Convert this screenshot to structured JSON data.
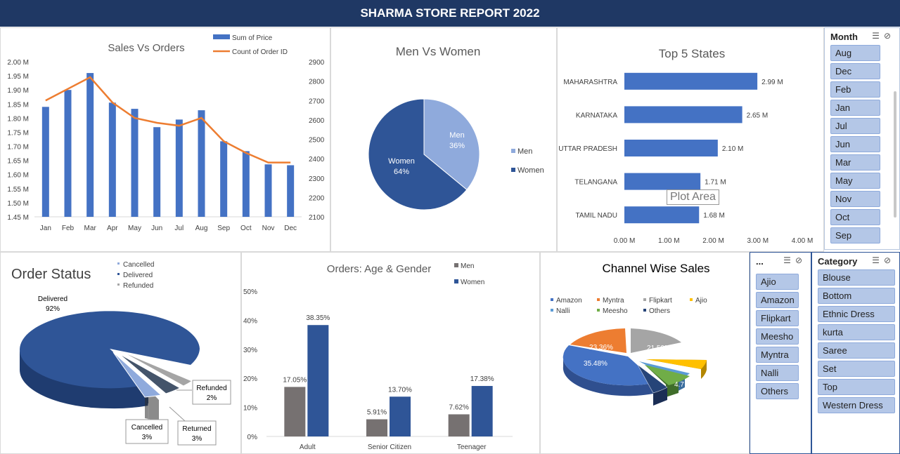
{
  "header": {
    "title": "SHARMA STORE REPORT 2022"
  },
  "tooltip": {
    "text": "Plot Area"
  },
  "slicers": {
    "month": {
      "title": "Month",
      "items": [
        "Aug",
        "Dec",
        "Feb",
        "Jan",
        "Jul",
        "Jun",
        "Mar",
        "May",
        "Nov",
        "Oct",
        "Sep"
      ]
    },
    "channel": {
      "title": "...",
      "items": [
        "Ajio",
        "Amazon",
        "Flipkart",
        "Meesho",
        "Myntra",
        "Nalli",
        "Others"
      ]
    },
    "category": {
      "title": "Category",
      "items": [
        "Blouse",
        "Bottom",
        "Ethnic Dress",
        "kurta",
        "Saree",
        "Set",
        "Top",
        "Western Dress"
      ]
    }
  },
  "colors": {
    "header": "#1f3864",
    "primary_blue": "#4472c4",
    "dark_blue": "#2f5597",
    "light_blue": "#8faadc",
    "orange": "#ed7d31",
    "grey": "#767171"
  },
  "chart_data": [
    {
      "id": "sales_vs_orders",
      "type": "bar",
      "title": "Sales Vs Orders",
      "categories": [
        "Jan",
        "Feb",
        "Mar",
        "Apr",
        "May",
        "Jun",
        "Jul",
        "Aug",
        "Sep",
        "Oct",
        "Nov",
        "Dec"
      ],
      "series": [
        {
          "name": "Sum of Price",
          "type": "bar",
          "axis": "left",
          "values": [
            1.84,
            1.9,
            1.96,
            1.855,
            1.833,
            1.768,
            1.795,
            1.828,
            1.718,
            1.683,
            1.636,
            1.633
          ]
        },
        {
          "name": "Count of Order ID",
          "type": "line",
          "axis": "right",
          "values": [
            2700,
            2760,
            2820,
            2690,
            2610,
            2585,
            2570,
            2610,
            2490,
            2430,
            2380,
            2380
          ]
        }
      ],
      "left_ticks": [
        "2.00 M",
        "1.95 M",
        "1.90 M",
        "1.85 M",
        "1.80 M",
        "1.75 M",
        "1.70 M",
        "1.65 M",
        "1.60 M",
        "1.55 M",
        "1.50 M",
        "1.45 M"
      ],
      "right_ticks": [
        "2900",
        "2800",
        "2700",
        "2600",
        "2500",
        "2400",
        "2300",
        "2200",
        "2100"
      ],
      "ylim_left": [
        1.45,
        2.0
      ],
      "ylim_right": [
        2100,
        2900
      ],
      "legend": "top-right"
    },
    {
      "id": "men_vs_women",
      "type": "pie",
      "title": "Men Vs Women",
      "slices": [
        {
          "label": "Men",
          "value": 36,
          "display": "36%",
          "color": "#8faadc"
        },
        {
          "label": "Women",
          "value": 64,
          "display": "64%",
          "color": "#2f5597"
        }
      ],
      "legend": "right"
    },
    {
      "id": "top_5_states",
      "type": "bar",
      "orientation": "horizontal",
      "title": "Top 5 States",
      "categories": [
        "MAHARASHTRA",
        "KARNATAKA",
        "UTTAR PRADESH",
        "TELANGANA",
        "TAMIL NADU"
      ],
      "values": [
        2.99,
        2.65,
        2.1,
        1.71,
        1.68
      ],
      "data_labels": [
        "2.99 M",
        "2.65 M",
        "2.10 M",
        "1.71 M",
        "1.68 M"
      ],
      "x_ticks": [
        "0.00 M",
        "1.00 M",
        "2.00 M",
        "3.00 M",
        "4.00 M"
      ],
      "xlim": [
        0,
        4
      ]
    },
    {
      "id": "order_status",
      "type": "pie",
      "title": "Order Status",
      "legend_items": [
        "Cancelled",
        "Delivered",
        "Refunded"
      ],
      "slices": [
        {
          "label": "Delivered",
          "value": 92,
          "display": "92%",
          "color": "#2f5597"
        },
        {
          "label": "Cancelled",
          "value": 3,
          "display": "3%",
          "color": "#8faadc"
        },
        {
          "label": "Returned",
          "value": 3,
          "display": "3%",
          "color": "#44546a"
        },
        {
          "label": "Refunded",
          "value": 2,
          "display": "2%",
          "color": "#a5a5a5"
        }
      ],
      "legend": "top"
    },
    {
      "id": "orders_age_gender",
      "type": "bar",
      "title": "Orders: Age &  Gender",
      "categories": [
        "Adult",
        "Senior Citizen",
        "Teenager"
      ],
      "series": [
        {
          "name": "Men",
          "values": [
            17.05,
            5.91,
            7.62
          ],
          "labels": [
            "17.05%",
            "5.91%",
            "7.62%"
          ],
          "color": "#767171"
        },
        {
          "name": "Women",
          "values": [
            38.35,
            13.7,
            17.38
          ],
          "labels": [
            "38.35%",
            "13.70%",
            "17.38%"
          ],
          "color": "#2f5597"
        }
      ],
      "y_ticks": [
        "50%",
        "40%",
        "30%",
        "20%",
        "10%",
        "0%"
      ],
      "ylim": [
        0,
        50
      ],
      "legend": "top-right"
    },
    {
      "id": "channel_wise_sales",
      "type": "pie",
      "title": "Channel Wise Sales",
      "legend_items": [
        {
          "label": "Amazon",
          "color": "#4472c4"
        },
        {
          "label": "Myntra",
          "color": "#ed7d31"
        },
        {
          "label": "Flipkart",
          "color": "#a5a5a5"
        },
        {
          "label": "Ajio",
          "color": "#ffc000"
        },
        {
          "label": "Nalli",
          "color": "#5b9bd5"
        },
        {
          "label": "Meesho",
          "color": "#70ad47"
        },
        {
          "label": "Others",
          "color": "#264478"
        }
      ],
      "slices": [
        {
          "label": "Amazon",
          "value": 35.48,
          "display": "35.48%"
        },
        {
          "label": "Myntra",
          "value": 23.36,
          "display": "23.36%"
        },
        {
          "label": "Flipkart",
          "value": 21.59,
          "display": "21.59%"
        },
        {
          "label": "Ajio",
          "value": 6.2,
          "display": ""
        },
        {
          "label": "Nalli",
          "value": 4.4,
          "display": ""
        },
        {
          "label": "Meesho",
          "value": 4.7,
          "display": "4.7"
        },
        {
          "label": "Others",
          "value": 4.27,
          "display": "4."
        }
      ],
      "legend": "top"
    }
  ]
}
